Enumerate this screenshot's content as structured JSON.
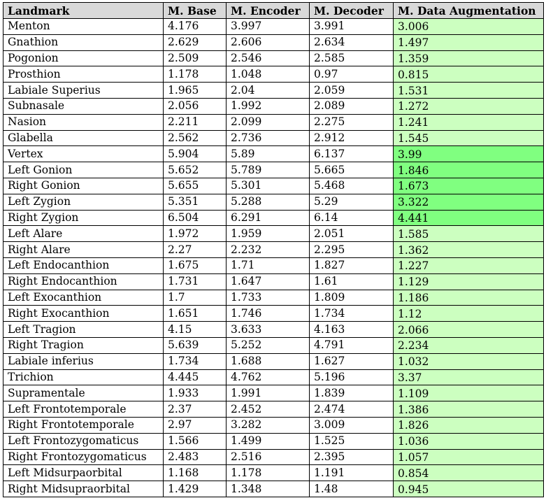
{
  "colors": {
    "header_bg": "#d9d9d9",
    "augmentation_bg": "#ccffc0",
    "augmentation_strong_bg": "#80ff80"
  },
  "columns": [
    "Landmark",
    "M. Base",
    "M. Encoder",
    "M. Decoder",
    "M. Data Augmentation"
  ],
  "rows": [
    {
      "landmark": "Menton",
      "base": "4.176",
      "encoder": "3.997",
      "decoder": "3.991",
      "augmentation": "3.006",
      "highlight": false
    },
    {
      "landmark": "Gnathion",
      "base": "2.629",
      "encoder": "2.606",
      "decoder": "2.634",
      "augmentation": "1.497",
      "highlight": false
    },
    {
      "landmark": "Pogonion",
      "base": "2.509",
      "encoder": "2.546",
      "decoder": "2.585",
      "augmentation": "1.359",
      "highlight": false
    },
    {
      "landmark": "Prosthion",
      "base": "1.178",
      "encoder": "1.048",
      "decoder": "0.97",
      "augmentation": "0.815",
      "highlight": false
    },
    {
      "landmark": "Labiale Superius",
      "base": "1.965",
      "encoder": "2.04",
      "decoder": "2.059",
      "augmentation": "1.531",
      "highlight": false
    },
    {
      "landmark": "Subnasale",
      "base": "2.056",
      "encoder": "1.992",
      "decoder": "2.089",
      "augmentation": "1.272",
      "highlight": false
    },
    {
      "landmark": "Nasion",
      "base": "2.211",
      "encoder": "2.099",
      "decoder": "2.275",
      "augmentation": "1.241",
      "highlight": false
    },
    {
      "landmark": "Glabella",
      "base": "2.562",
      "encoder": "2.736",
      "decoder": "2.912",
      "augmentation": "1.545",
      "highlight": false
    },
    {
      "landmark": "Vertex",
      "base": "5.904",
      "encoder": "5.89",
      "decoder": "6.137",
      "augmentation": "3.99",
      "highlight": true
    },
    {
      "landmark": "Left Gonion",
      "base": "5.652",
      "encoder": "5.789",
      "decoder": "5.665",
      "augmentation": "1.846",
      "highlight": true
    },
    {
      "landmark": "Right Gonion",
      "base": "5.655",
      "encoder": "5.301",
      "decoder": "5.468",
      "augmentation": "1.673",
      "highlight": true
    },
    {
      "landmark": "Left Zygion",
      "base": "5.351",
      "encoder": "5.288",
      "decoder": "5.29",
      "augmentation": "3.322",
      "highlight": true
    },
    {
      "landmark": "Right Zygion",
      "base": "6.504",
      "encoder": "6.291",
      "decoder": "6.14",
      "augmentation": "4.441",
      "highlight": true
    },
    {
      "landmark": "Left Alare",
      "base": "1.972",
      "encoder": "1.959",
      "decoder": "2.051",
      "augmentation": "1.585",
      "highlight": false
    },
    {
      "landmark": "Right Alare",
      "base": "2.27",
      "encoder": "2.232",
      "decoder": "2.295",
      "augmentation": "1.362",
      "highlight": false
    },
    {
      "landmark": "Left Endocanthion",
      "base": "1.675",
      "encoder": "1.71",
      "decoder": "1.827",
      "augmentation": "1.227",
      "highlight": false
    },
    {
      "landmark": "Right Endocanthion",
      "base": "1.731",
      "encoder": "1.647",
      "decoder": "1.61",
      "augmentation": "1.129",
      "highlight": false
    },
    {
      "landmark": "Left Exocanthion",
      "base": "1.7",
      "encoder": "1.733",
      "decoder": "1.809",
      "augmentation": "1.186",
      "highlight": false
    },
    {
      "landmark": "Right Exocanthion",
      "base": "1.651",
      "encoder": "1.746",
      "decoder": "1.734",
      "augmentation": "1.12",
      "highlight": false
    },
    {
      "landmark": "Left Tragion",
      "base": "4.15",
      "encoder": "3.633",
      "decoder": "4.163",
      "augmentation": "2.066",
      "highlight": false
    },
    {
      "landmark": "Right Tragion",
      "base": "5.639",
      "encoder": "5.252",
      "decoder": "4.791",
      "augmentation": "2.234",
      "highlight": false
    },
    {
      "landmark": "Labiale inferius",
      "base": "1.734",
      "encoder": "1.688",
      "decoder": "1.627",
      "augmentation": "1.032",
      "highlight": false
    },
    {
      "landmark": "Trichion",
      "base": "4.445",
      "encoder": "4.762",
      "decoder": "5.196",
      "augmentation": "3.37",
      "highlight": false
    },
    {
      "landmark": "Supramentale",
      "base": "1.933",
      "encoder": "1.991",
      "decoder": "1.839",
      "augmentation": "1.109",
      "highlight": false
    },
    {
      "landmark": "Left Frontotemporale",
      "base": "2.37",
      "encoder": "2.452",
      "decoder": "2.474",
      "augmentation": "1.386",
      "highlight": false
    },
    {
      "landmark": "Right Frontotemporale",
      "base": "2.97",
      "encoder": "3.282",
      "decoder": "3.009",
      "augmentation": "1.826",
      "highlight": false
    },
    {
      "landmark": "Left Frontozygomaticus",
      "base": "1.566",
      "encoder": "1.499",
      "decoder": "1.525",
      "augmentation": "1.036",
      "highlight": false
    },
    {
      "landmark": "Right Frontozygomaticus",
      "base": "2.483",
      "encoder": "2.516",
      "decoder": "2.395",
      "augmentation": "1.057",
      "highlight": false
    },
    {
      "landmark": "Left Midsurpaorbital",
      "base": "1.168",
      "encoder": "1.178",
      "decoder": "1.191",
      "augmentation": "0.854",
      "highlight": false
    },
    {
      "landmark": "Right Midsupraorbital",
      "base": "1.429",
      "encoder": "1.348",
      "decoder": "1.48",
      "augmentation": "0.945",
      "highlight": false
    }
  ]
}
